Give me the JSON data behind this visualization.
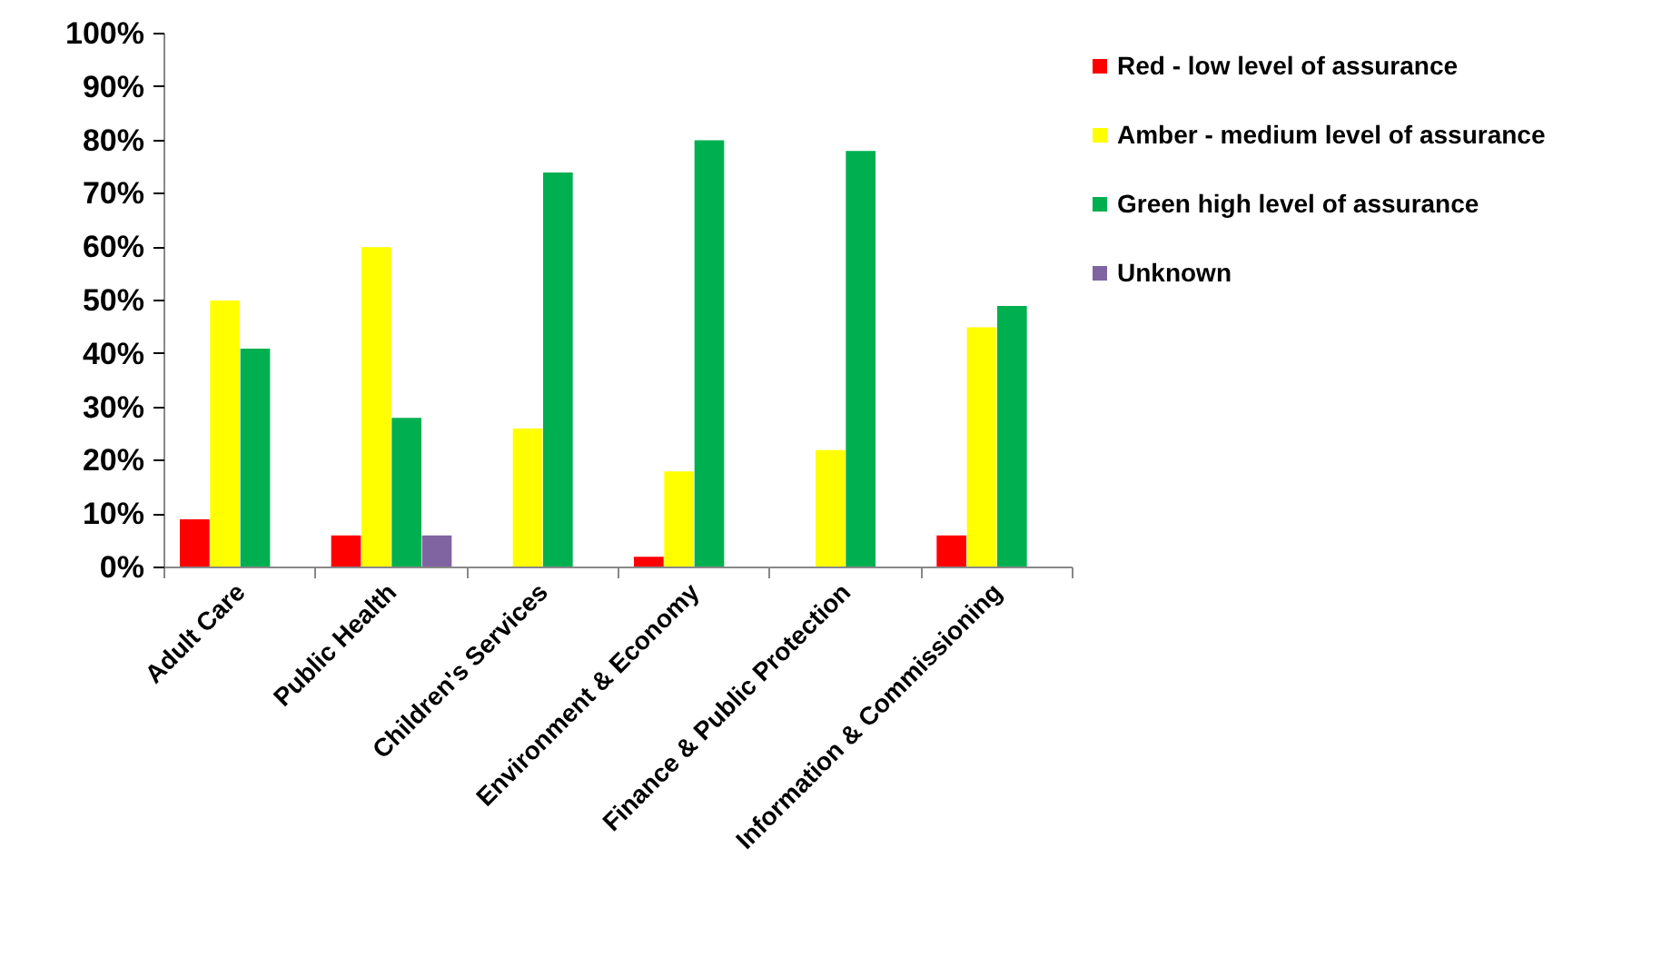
{
  "chart_data": {
    "type": "bar",
    "categories": [
      "Adult Care",
      "Public Health",
      "Children's Services",
      "Environment & Economy",
      "Finance & Public Protection",
      "Information & Commissioning"
    ],
    "series": [
      {
        "name": "Red - low level of assurance",
        "color": "#ff0000",
        "values": [
          9,
          6,
          0,
          2,
          0,
          6
        ]
      },
      {
        "name": "Amber - medium level of assurance",
        "color": "#ffff00",
        "values": [
          50,
          60,
          26,
          18,
          22,
          45
        ]
      },
      {
        "name": "Green high level of assurance",
        "color": "#00b050",
        "values": [
          41,
          28,
          74,
          80,
          78,
          49
        ]
      },
      {
        "name": "Unknown",
        "color": "#8064a2",
        "values": [
          0,
          6,
          0,
          0,
          0,
          0
        ]
      }
    ],
    "ylim": [
      0,
      100
    ],
    "yticks": [
      {
        "value": 0,
        "label": "0%"
      },
      {
        "value": 10,
        "label": "10%"
      },
      {
        "value": 20,
        "label": "20%"
      },
      {
        "value": 30,
        "label": "30%"
      },
      {
        "value": 40,
        "label": "40%"
      },
      {
        "value": 50,
        "label": "50%"
      },
      {
        "value": 60,
        "label": "60%"
      },
      {
        "value": 70,
        "label": "70%"
      },
      {
        "value": 80,
        "label": "80%"
      },
      {
        "value": 90,
        "label": "90%"
      },
      {
        "value": 100,
        "label": "100%"
      }
    ],
    "grid": false,
    "legend": "right"
  }
}
